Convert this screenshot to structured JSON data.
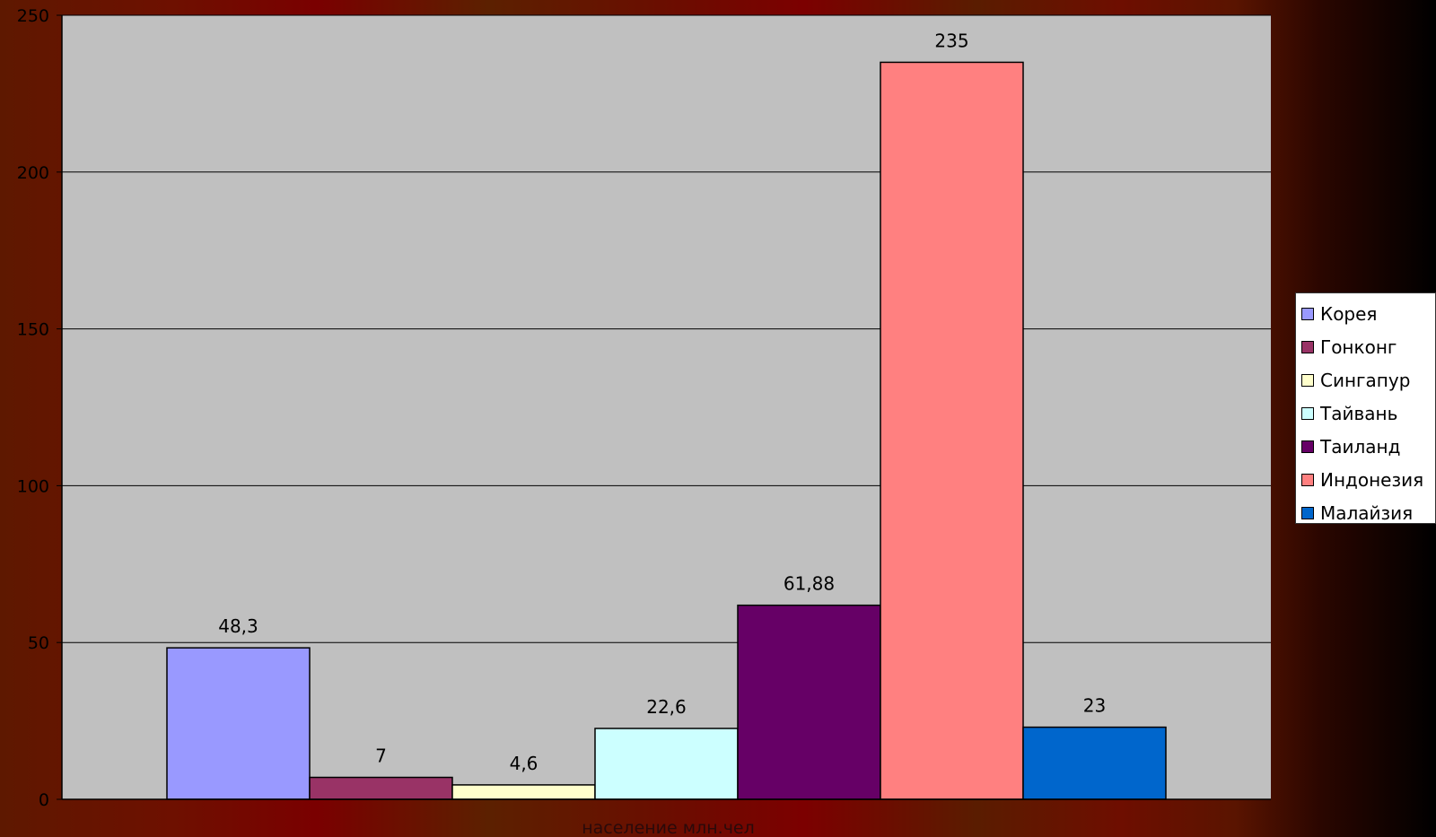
{
  "chart_data": {
    "type": "bar",
    "title": "",
    "xlabel": "население млн.чел",
    "ylabel": "",
    "ylim": [
      0,
      250
    ],
    "yticks": [
      "0",
      "50",
      "100",
      "150",
      "200",
      "250"
    ],
    "grid": true,
    "legend_position": "right",
    "series": [
      {
        "name": "Корея",
        "value": 48.3,
        "label": "48,3",
        "color": "#9999ff"
      },
      {
        "name": "Гонконг",
        "value": 7,
        "label": "7",
        "color": "#993366"
      },
      {
        "name": "Сингапур",
        "value": 4.6,
        "label": "4,6",
        "color": "#ffffcc"
      },
      {
        "name": "Тайвань",
        "value": 22.6,
        "label": "22,6",
        "color": "#ccffff"
      },
      {
        "name": "Таиланд",
        "value": 61.88,
        "label": "61,88",
        "color": "#660066"
      },
      {
        "name": "Индонезия",
        "value": 235,
        "label": "235",
        "color": "#ff8080"
      },
      {
        "name": "Малайзия",
        "value": 23,
        "label": "23",
        "color": "#0066cc"
      }
    ]
  },
  "colors": {
    "plot_background": "#c0c0c0",
    "gridline": "#000000"
  }
}
